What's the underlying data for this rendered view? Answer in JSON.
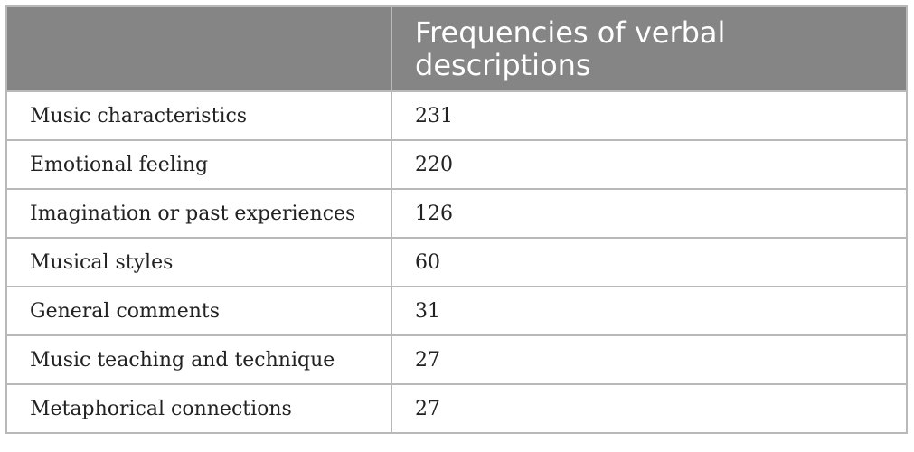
{
  "chart_data": {
    "type": "table",
    "columns": [
      "",
      "Frequencies of verbal descriptions"
    ],
    "rows": [
      {
        "category": "Music characteristics",
        "frequency": 231
      },
      {
        "category": "Emotional feeling",
        "frequency": 220
      },
      {
        "category": "Imagination or past experiences",
        "frequency": 126
      },
      {
        "category": "Musical styles",
        "frequency": 60
      },
      {
        "category": "General comments",
        "frequency": 31
      },
      {
        "category": "Music teaching and technique",
        "frequency": 27
      },
      {
        "category": "Metaphorical connections",
        "frequency": 27
      }
    ]
  },
  "colors": {
    "header_bg": "#858585",
    "header_text": "#ffffff",
    "border": "#b9b9b9"
  }
}
